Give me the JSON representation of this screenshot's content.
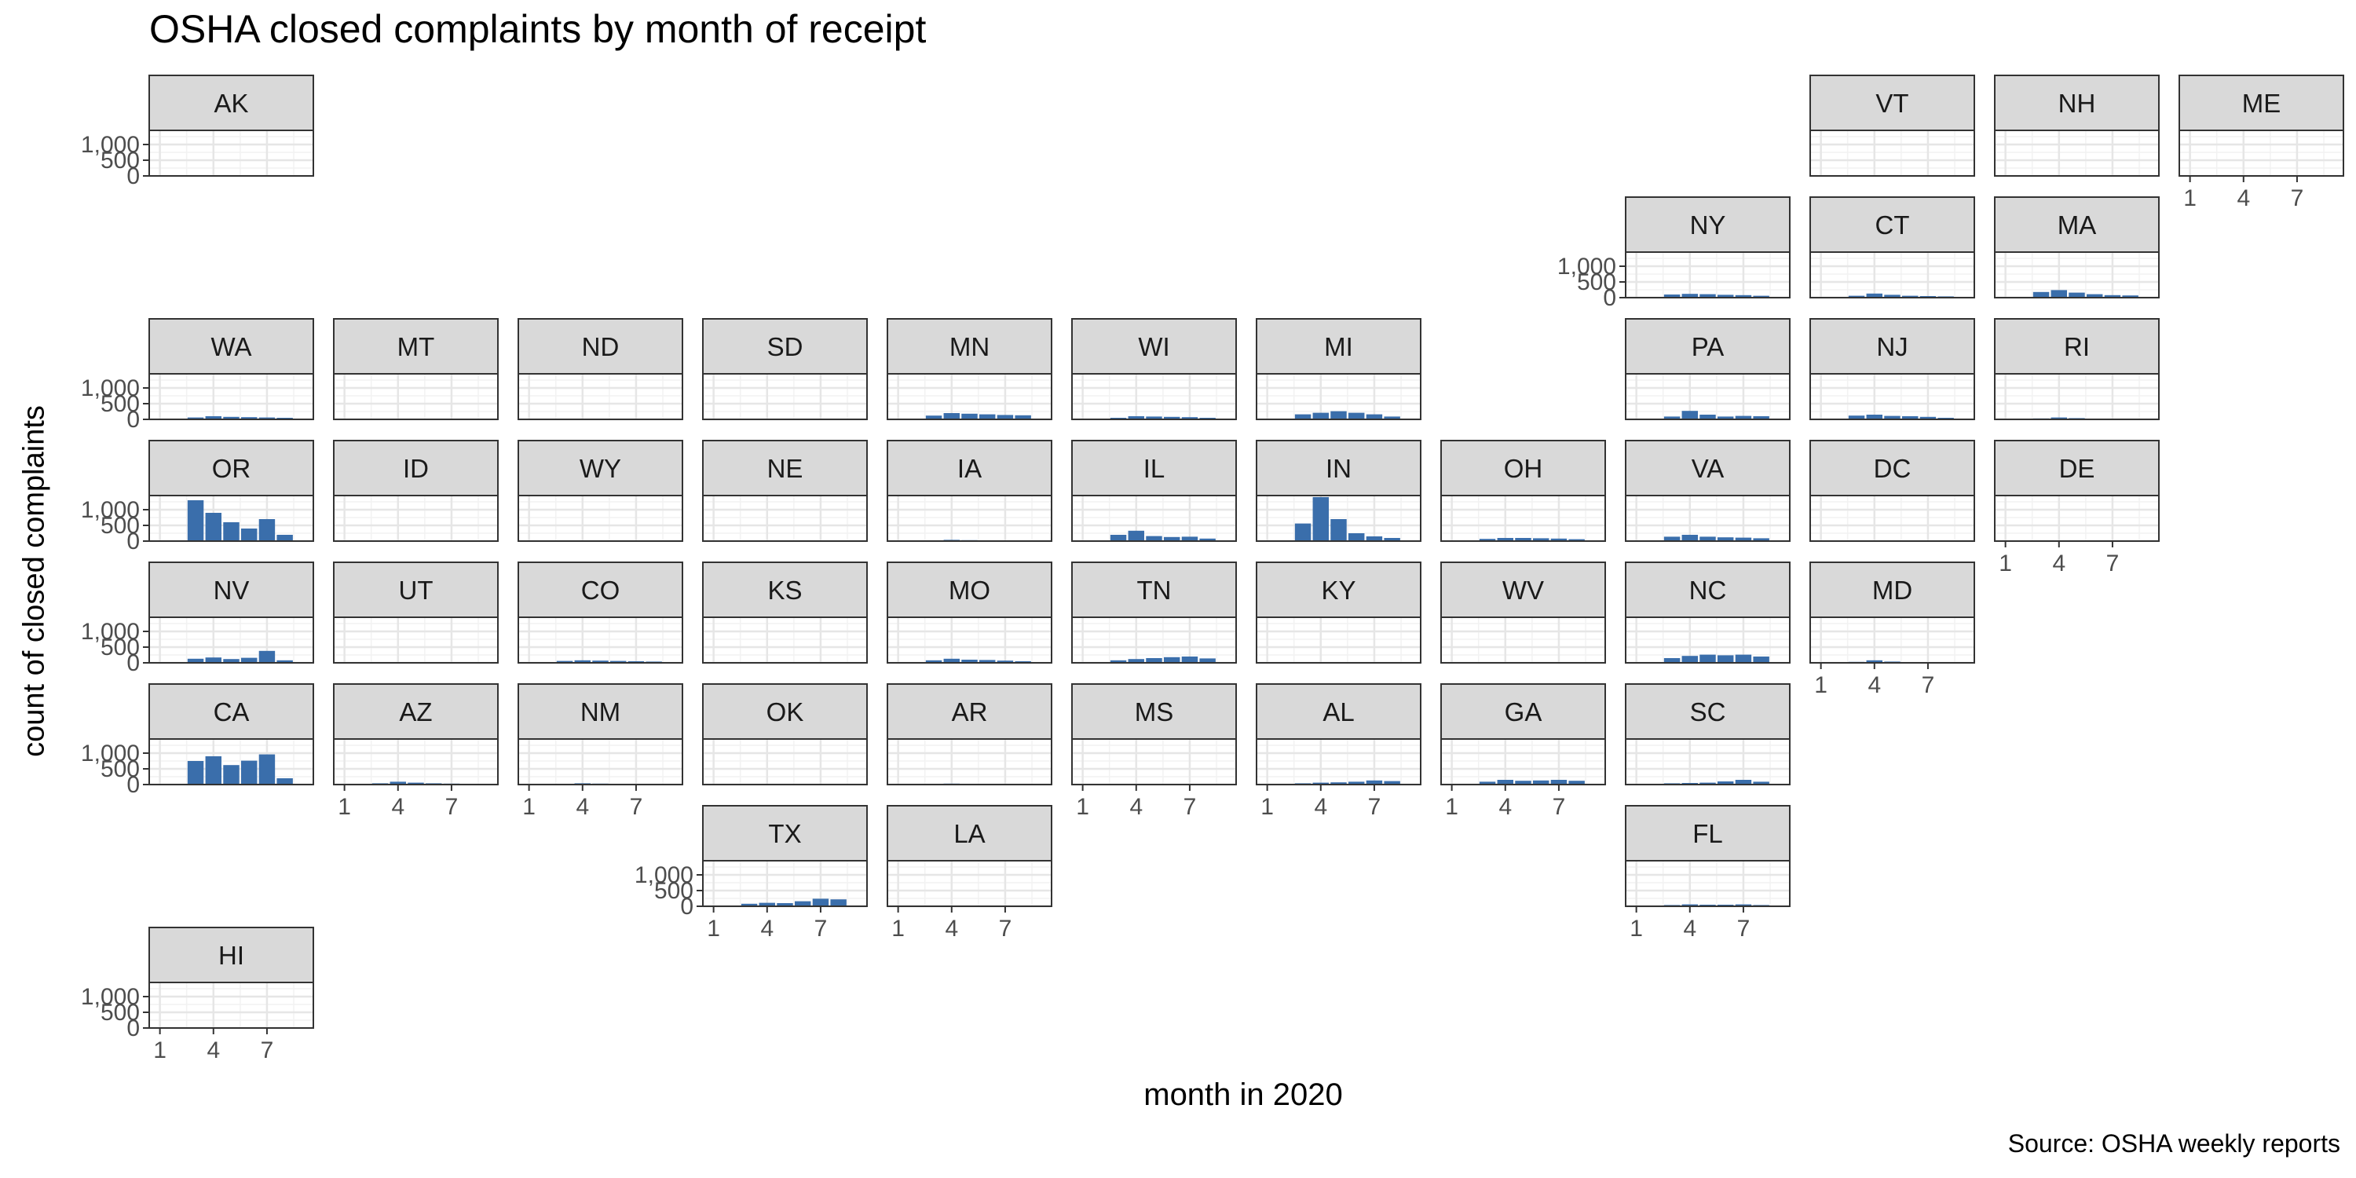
{
  "chart_data": {
    "type": "bar",
    "title": "OSHA closed complaints by month of receipt",
    "xlabel": "month in 2020",
    "ylabel": "count of closed complaints",
    "caption": "Source: OSHA weekly reports",
    "xlim": [
      0.4,
      9.6
    ],
    "ylim": [
      0,
      1450
    ],
    "x_ticks": [
      1,
      4,
      7
    ],
    "y_ticks": [
      0,
      500,
      1000
    ],
    "y_tick_labels": [
      "0",
      "500",
      "1,000"
    ],
    "grid": true,
    "bar_color": "#3a6eab",
    "months": [
      1,
      2,
      3,
      4,
      5,
      6,
      7,
      8,
      9
    ],
    "states": [
      {
        "state": "AK",
        "row": 0,
        "col": 0,
        "show_y": true,
        "show_x": false,
        "values": [
          0,
          0,
          5,
          5,
          5,
          0,
          0,
          0,
          0
        ]
      },
      {
        "state": "VT",
        "row": 0,
        "col": 9,
        "show_y": false,
        "show_x": false,
        "values": [
          0,
          0,
          10,
          20,
          15,
          10,
          10,
          10,
          5
        ]
      },
      {
        "state": "NH",
        "row": 0,
        "col": 10,
        "show_y": false,
        "show_x": false,
        "values": [
          0,
          0,
          10,
          20,
          15,
          10,
          10,
          10,
          5
        ]
      },
      {
        "state": "ME",
        "row": 0,
        "col": 11,
        "show_y": false,
        "show_x": true,
        "values": [
          0,
          0,
          10,
          15,
          10,
          10,
          10,
          5,
          5
        ]
      },
      {
        "state": "NY",
        "row": 1,
        "col": 8,
        "show_y": true,
        "show_x": false,
        "values": [
          0,
          0,
          100,
          120,
          110,
          90,
          80,
          60,
          20
        ]
      },
      {
        "state": "CT",
        "row": 1,
        "col": 9,
        "show_y": false,
        "show_x": false,
        "values": [
          0,
          0,
          60,
          130,
          90,
          60,
          50,
          40,
          10
        ]
      },
      {
        "state": "MA",
        "row": 1,
        "col": 10,
        "show_y": false,
        "show_x": false,
        "values": [
          0,
          0,
          180,
          240,
          160,
          110,
          80,
          70,
          20
        ]
      },
      {
        "state": "WA",
        "row": 2,
        "col": 0,
        "show_y": true,
        "show_x": false,
        "values": [
          0,
          0,
          60,
          100,
          80,
          70,
          60,
          50,
          10
        ]
      },
      {
        "state": "MT",
        "row": 2,
        "col": 1,
        "show_y": false,
        "show_x": false,
        "values": [
          0,
          0,
          5,
          10,
          5,
          5,
          5,
          5,
          0
        ]
      },
      {
        "state": "ND",
        "row": 2,
        "col": 2,
        "show_y": false,
        "show_x": false,
        "values": [
          0,
          0,
          5,
          5,
          5,
          5,
          5,
          5,
          0
        ]
      },
      {
        "state": "SD",
        "row": 2,
        "col": 3,
        "show_y": false,
        "show_x": false,
        "values": [
          0,
          0,
          5,
          5,
          5,
          5,
          5,
          5,
          0
        ]
      },
      {
        "state": "MN",
        "row": 2,
        "col": 4,
        "show_y": false,
        "show_x": false,
        "values": [
          0,
          0,
          120,
          200,
          180,
          160,
          140,
          130,
          20
        ]
      },
      {
        "state": "WI",
        "row": 2,
        "col": 5,
        "show_y": false,
        "show_x": false,
        "values": [
          0,
          0,
          50,
          100,
          90,
          80,
          70,
          50,
          10
        ]
      },
      {
        "state": "MI",
        "row": 2,
        "col": 6,
        "show_y": false,
        "show_x": false,
        "values": [
          0,
          0,
          160,
          210,
          260,
          210,
          160,
          90,
          20
        ]
      },
      {
        "state": "PA",
        "row": 2,
        "col": 8,
        "show_y": false,
        "show_x": false,
        "values": [
          0,
          0,
          90,
          270,
          150,
          90,
          110,
          100,
          20
        ]
      },
      {
        "state": "NJ",
        "row": 2,
        "col": 9,
        "show_y": false,
        "show_x": false,
        "values": [
          0,
          0,
          120,
          150,
          110,
          100,
          80,
          50,
          10
        ]
      },
      {
        "state": "RI",
        "row": 2,
        "col": 10,
        "show_y": false,
        "show_x": false,
        "values": [
          0,
          0,
          30,
          60,
          40,
          20,
          20,
          10,
          5
        ]
      },
      {
        "state": "OR",
        "row": 3,
        "col": 0,
        "show_y": true,
        "show_x": false,
        "values": [
          0,
          0,
          1300,
          900,
          600,
          400,
          700,
          200,
          0
        ]
      },
      {
        "state": "ID",
        "row": 3,
        "col": 1,
        "show_y": false,
        "show_x": false,
        "values": [
          0,
          0,
          5,
          10,
          5,
          5,
          5,
          5,
          0
        ]
      },
      {
        "state": "WY",
        "row": 3,
        "col": 2,
        "show_y": false,
        "show_x": false,
        "values": [
          0,
          0,
          5,
          5,
          5,
          5,
          5,
          5,
          0
        ]
      },
      {
        "state": "NE",
        "row": 3,
        "col": 3,
        "show_y": false,
        "show_x": false,
        "values": [
          0,
          0,
          5,
          10,
          5,
          5,
          5,
          5,
          0
        ]
      },
      {
        "state": "IA",
        "row": 3,
        "col": 4,
        "show_y": false,
        "show_x": false,
        "values": [
          0,
          0,
          20,
          40,
          30,
          20,
          20,
          15,
          5
        ]
      },
      {
        "state": "IL",
        "row": 3,
        "col": 5,
        "show_y": false,
        "show_x": false,
        "values": [
          0,
          0,
          200,
          330,
          160,
          130,
          140,
          80,
          10
        ]
      },
      {
        "state": "IN",
        "row": 3,
        "col": 6,
        "show_y": false,
        "show_x": false,
        "values": [
          0,
          0,
          560,
          1400,
          700,
          250,
          150,
          100,
          20
        ]
      },
      {
        "state": "OH",
        "row": 3,
        "col": 7,
        "show_y": false,
        "show_x": false,
        "values": [
          0,
          0,
          70,
          100,
          100,
          90,
          80,
          60,
          10
        ]
      },
      {
        "state": "VA",
        "row": 3,
        "col": 8,
        "show_y": false,
        "show_x": false,
        "values": [
          0,
          0,
          140,
          200,
          140,
          120,
          110,
          90,
          10
        ]
      },
      {
        "state": "DC",
        "row": 3,
        "col": 9,
        "show_y": false,
        "show_x": false,
        "values": [
          0,
          0,
          5,
          10,
          5,
          5,
          5,
          5,
          0
        ]
      },
      {
        "state": "DE",
        "row": 3,
        "col": 10,
        "show_y": false,
        "show_x": true,
        "values": [
          0,
          0,
          5,
          10,
          5,
          5,
          5,
          5,
          0
        ]
      },
      {
        "state": "NV",
        "row": 4,
        "col": 0,
        "show_y": true,
        "show_x": false,
        "values": [
          0,
          0,
          130,
          170,
          120,
          160,
          380,
          80,
          10
        ]
      },
      {
        "state": "UT",
        "row": 4,
        "col": 1,
        "show_y": false,
        "show_x": false,
        "values": [
          0,
          0,
          10,
          20,
          10,
          10,
          10,
          5,
          0
        ]
      },
      {
        "state": "CO",
        "row": 4,
        "col": 2,
        "show_y": false,
        "show_x": false,
        "values": [
          0,
          0,
          60,
          80,
          70,
          60,
          50,
          40,
          5
        ]
      },
      {
        "state": "KS",
        "row": 4,
        "col": 3,
        "show_y": false,
        "show_x": false,
        "values": [
          0,
          0,
          10,
          20,
          15,
          10,
          10,
          10,
          0
        ]
      },
      {
        "state": "MO",
        "row": 4,
        "col": 4,
        "show_y": false,
        "show_x": false,
        "values": [
          0,
          0,
          80,
          130,
          100,
          90,
          70,
          50,
          10
        ]
      },
      {
        "state": "TN",
        "row": 4,
        "col": 5,
        "show_y": false,
        "show_x": false,
        "values": [
          0,
          0,
          80,
          120,
          150,
          180,
          200,
          140,
          10
        ]
      },
      {
        "state": "KY",
        "row": 4,
        "col": 6,
        "show_y": false,
        "show_x": false,
        "values": [
          0,
          0,
          10,
          20,
          15,
          10,
          15,
          20,
          0
        ]
      },
      {
        "state": "WV",
        "row": 4,
        "col": 7,
        "show_y": false,
        "show_x": false,
        "values": [
          0,
          0,
          10,
          20,
          15,
          10,
          10,
          10,
          0
        ]
      },
      {
        "state": "NC",
        "row": 4,
        "col": 8,
        "show_y": false,
        "show_x": false,
        "values": [
          0,
          0,
          150,
          220,
          260,
          240,
          260,
          200,
          20
        ]
      },
      {
        "state": "MD",
        "row": 4,
        "col": 9,
        "show_y": false,
        "show_x": true,
        "values": [
          0,
          0,
          30,
          80,
          40,
          20,
          20,
          15,
          5
        ]
      },
      {
        "state": "CA",
        "row": 5,
        "col": 0,
        "show_y": true,
        "show_x": false,
        "values": [
          0,
          0,
          750,
          900,
          620,
          760,
          960,
          200,
          0
        ]
      },
      {
        "state": "AZ",
        "row": 5,
        "col": 1,
        "show_y": false,
        "show_x": true,
        "values": [
          0,
          0,
          40,
          90,
          60,
          40,
          30,
          20,
          5
        ]
      },
      {
        "state": "NM",
        "row": 5,
        "col": 2,
        "show_y": false,
        "show_x": true,
        "values": [
          0,
          0,
          20,
          40,
          30,
          20,
          20,
          10,
          0
        ]
      },
      {
        "state": "OK",
        "row": 5,
        "col": 3,
        "show_y": false,
        "show_x": false,
        "values": [
          0,
          0,
          10,
          20,
          10,
          15,
          20,
          15,
          0
        ]
      },
      {
        "state": "AR",
        "row": 5,
        "col": 4,
        "show_y": false,
        "show_x": false,
        "values": [
          0,
          0,
          20,
          30,
          20,
          20,
          20,
          10,
          0
        ]
      },
      {
        "state": "MS",
        "row": 5,
        "col": 5,
        "show_y": false,
        "show_x": true,
        "values": [
          0,
          0,
          10,
          20,
          15,
          15,
          20,
          10,
          0
        ]
      },
      {
        "state": "AL",
        "row": 5,
        "col": 6,
        "show_y": false,
        "show_x": true,
        "values": [
          0,
          0,
          40,
          60,
          70,
          90,
          130,
          110,
          10
        ]
      },
      {
        "state": "GA",
        "row": 5,
        "col": 7,
        "show_y": false,
        "show_x": true,
        "values": [
          0,
          0,
          90,
          150,
          120,
          130,
          150,
          120,
          20
        ]
      },
      {
        "state": "SC",
        "row": 5,
        "col": 8,
        "show_y": false,
        "show_x": false,
        "values": [
          0,
          0,
          40,
          50,
          60,
          100,
          150,
          90,
          10
        ]
      },
      {
        "state": "TX",
        "row": 6,
        "col": 3,
        "show_y": true,
        "show_x": true,
        "values": [
          0,
          0,
          80,
          110,
          100,
          160,
          240,
          220,
          20
        ]
      },
      {
        "state": "LA",
        "row": 6,
        "col": 4,
        "show_y": false,
        "show_x": true,
        "values": [
          0,
          0,
          10,
          15,
          10,
          10,
          10,
          10,
          0
        ]
      },
      {
        "state": "FL",
        "row": 6,
        "col": 8,
        "show_y": false,
        "show_x": true,
        "values": [
          0,
          0,
          40,
          60,
          50,
          50,
          60,
          40,
          10
        ]
      },
      {
        "state": "HI",
        "row": 7,
        "col": 0,
        "show_y": true,
        "show_x": true,
        "values": [
          0,
          0,
          5,
          10,
          5,
          5,
          5,
          5,
          0
        ]
      }
    ]
  }
}
